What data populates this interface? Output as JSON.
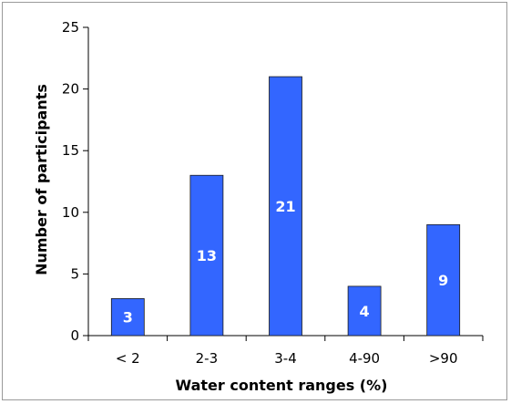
{
  "chart_data": {
    "type": "bar",
    "title": "",
    "xlabel": "Water content ranges (%)",
    "ylabel": "Number of participants",
    "categories": [
      "< 2",
      "2-3",
      "3-4",
      "4-90",
      ">90"
    ],
    "values": [
      3,
      13,
      21,
      4,
      9
    ],
    "data_labels": [
      "3",
      "13",
      "21",
      "4",
      "9"
    ],
    "ylim": [
      0,
      25
    ],
    "yticks": [
      0,
      5,
      10,
      15,
      20,
      25
    ],
    "ytick_labels": [
      "0",
      "5",
      "10",
      "15",
      "20",
      "25"
    ],
    "grid": false,
    "legend": "none",
    "bar_color": "#3366ff",
    "bar_stroke": "#1a1a1a"
  }
}
